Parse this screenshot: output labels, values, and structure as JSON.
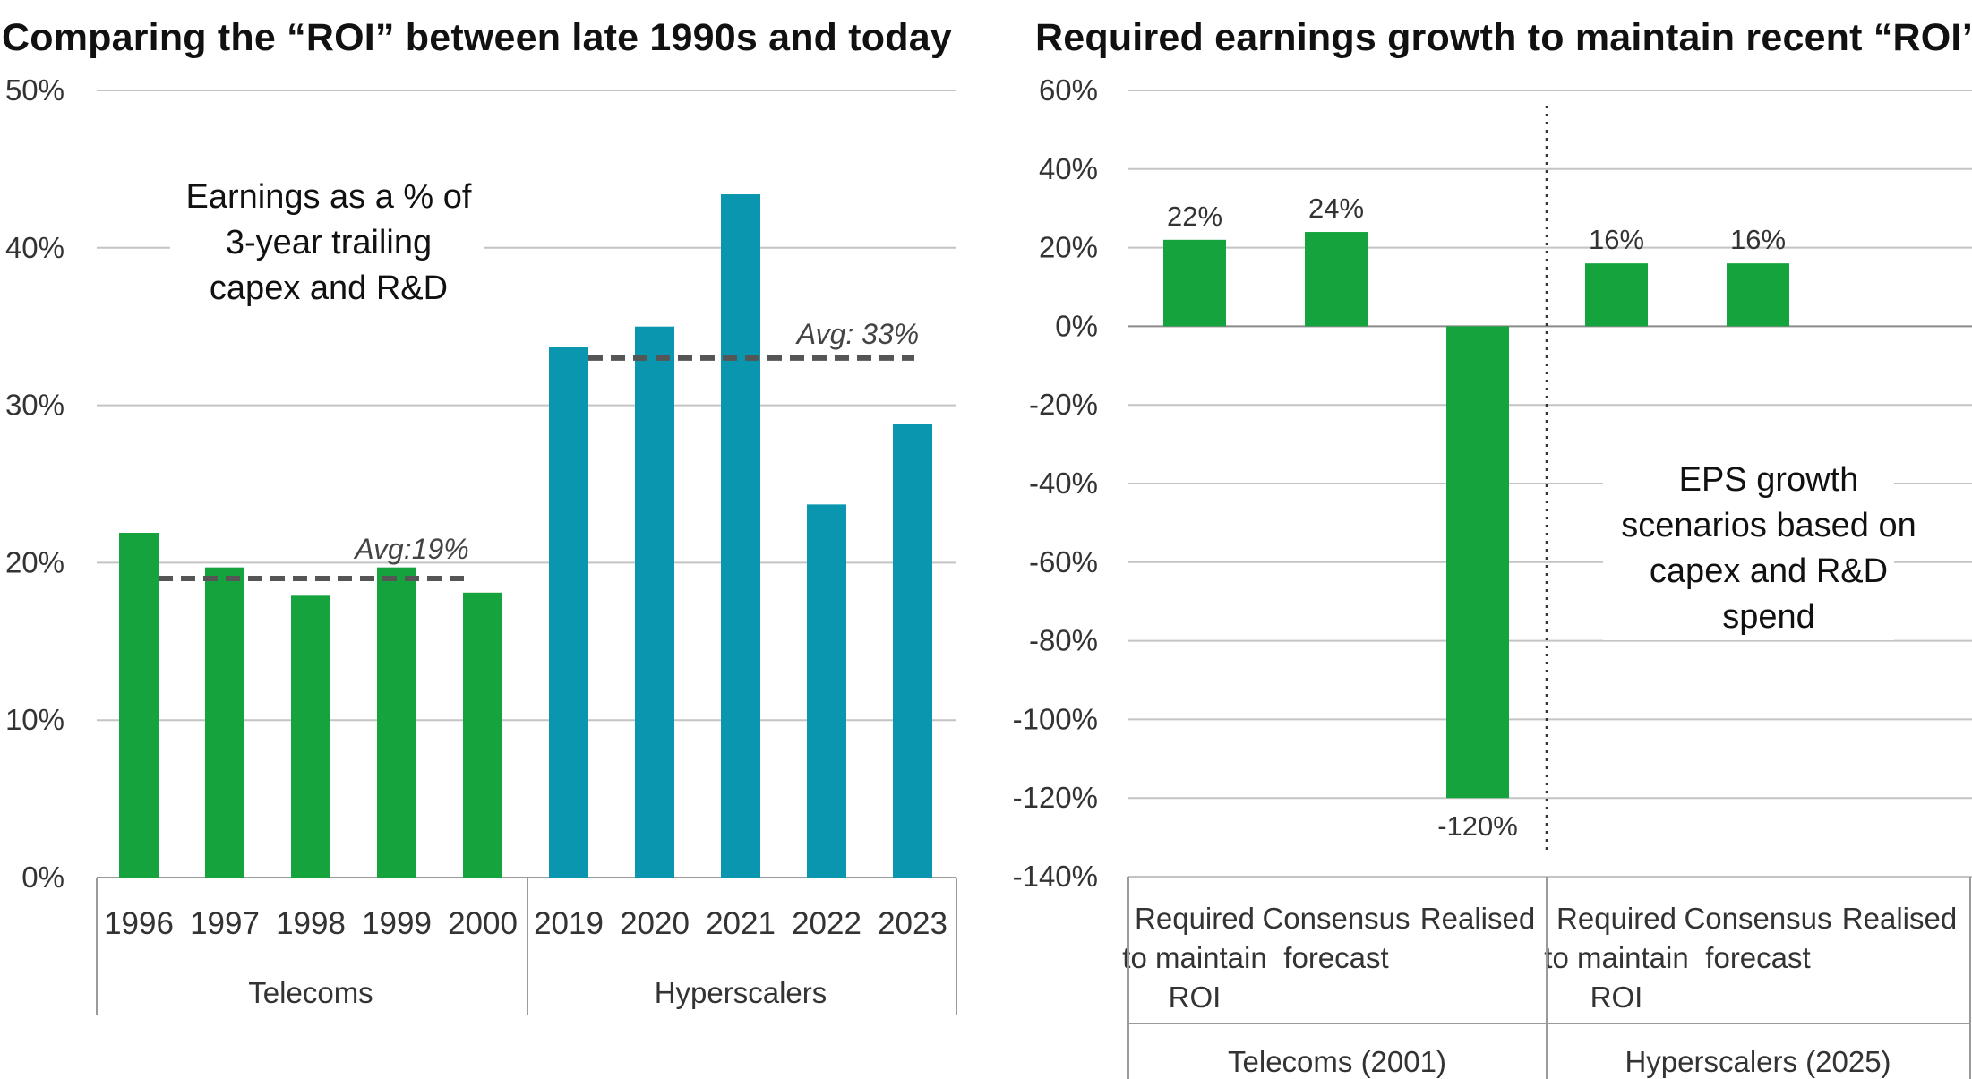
{
  "chart_data": [
    {
      "type": "bar",
      "title": "Comparing the “ROI” between late 1990s and today",
      "annotation": [
        "Earnings as a % of",
        "3-year trailing",
        "capex and R&D"
      ],
      "ylim": [
        0,
        50
      ],
      "yticks": [
        "0%",
        "10%",
        "20%",
        "30%",
        "40%",
        "50%"
      ],
      "grid": true,
      "groups": [
        {
          "name": "Telecoms",
          "color": "#14A33D",
          "categories": [
            "1996",
            "1997",
            "1998",
            "1999",
            "2000"
          ],
          "values": [
            21.9,
            19.7,
            17.9,
            19.7,
            18.1
          ],
          "average": 19,
          "average_label": "Avg:19%"
        },
        {
          "name": "Hyperscalers",
          "color": "#0A96AE",
          "categories": [
            "2019",
            "2020",
            "2021",
            "2022",
            "2023"
          ],
          "values": [
            33.7,
            35.0,
            43.4,
            23.7,
            28.8
          ],
          "average": 33,
          "average_label": "Avg: 33%"
        }
      ]
    },
    {
      "type": "bar",
      "title": "Required earnings growth to maintain recent “ROI”",
      "annotation": [
        "EPS growth",
        "scenarios based on",
        "capex and R&D",
        "spend"
      ],
      "ylim": [
        -140,
        60
      ],
      "yticks": [
        "60%",
        "40%",
        "20%",
        "0%",
        "-20%",
        "-40%",
        "-60%",
        "-80%",
        "-100%",
        "-120%",
        "-140%"
      ],
      "grid": true,
      "color": "#14A33D",
      "groups": [
        {
          "name": "Telecoms (2001)",
          "categories": [
            [
              "Required",
              "to maintain",
              "ROI"
            ],
            [
              "Consensus",
              "forecast"
            ],
            [
              "Realised"
            ]
          ],
          "values": [
            22,
            24,
            -120
          ],
          "labels": [
            "22%",
            "24%",
            "-120%"
          ]
        },
        {
          "name": "Hyperscalers (2025)",
          "categories": [
            [
              "Required",
              "to maintain",
              "ROI"
            ],
            [
              "Consensus",
              "forecast"
            ],
            [
              "Realised"
            ]
          ],
          "values": [
            16,
            16,
            null
          ],
          "labels": [
            "16%",
            "16%",
            ""
          ]
        }
      ]
    }
  ]
}
